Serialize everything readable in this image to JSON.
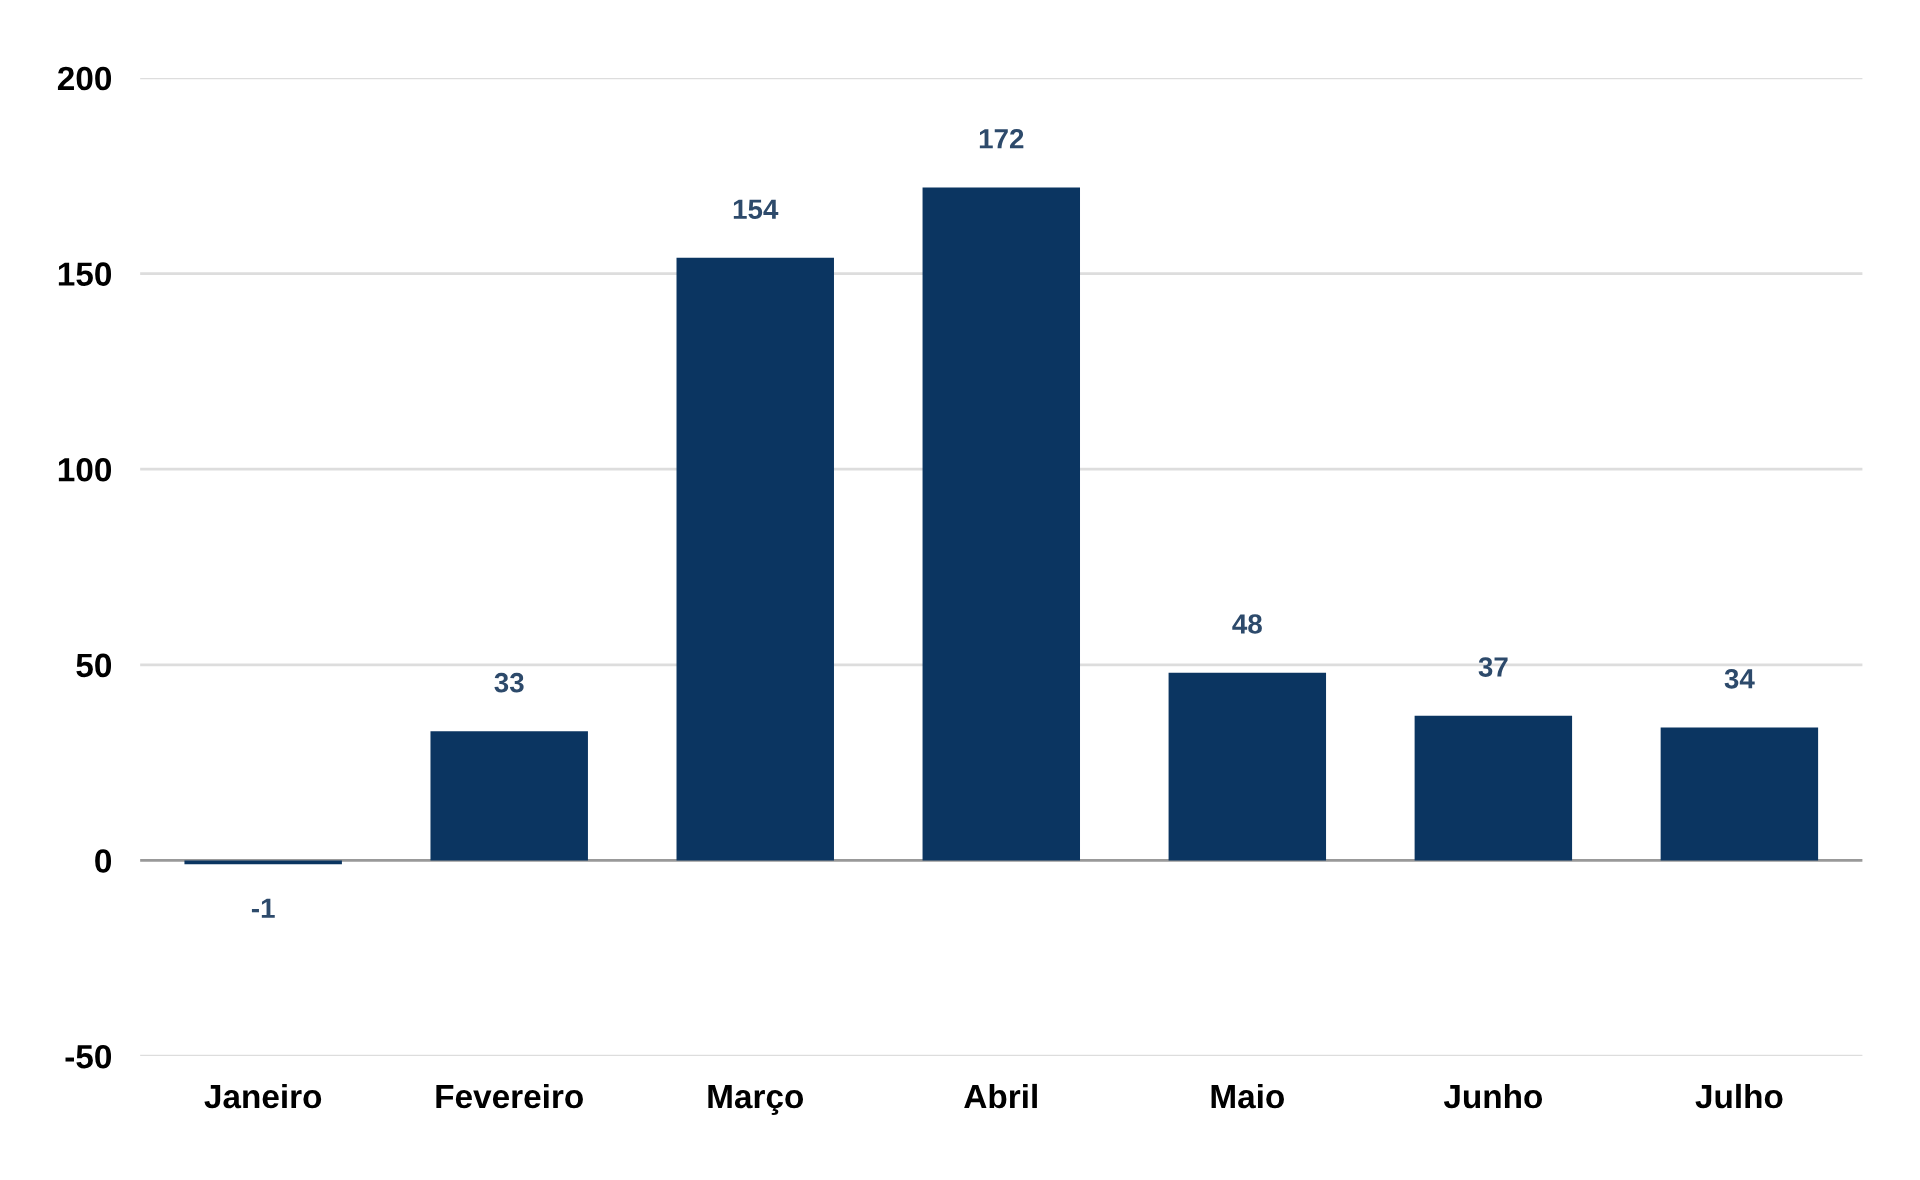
{
  "chart_data": {
    "type": "bar",
    "categories": [
      "Janeiro",
      "Fevereiro",
      "Março",
      "Abril",
      "Maio",
      "Junho",
      "Julho"
    ],
    "values": [
      -1,
      33,
      154,
      172,
      48,
      37,
      34
    ],
    "color": "#0b3561",
    "ylim": [
      -50,
      200
    ],
    "yticks": [
      -50,
      0,
      50,
      100,
      150,
      200
    ],
    "grid": "y",
    "data_labels": true,
    "legend": false
  }
}
